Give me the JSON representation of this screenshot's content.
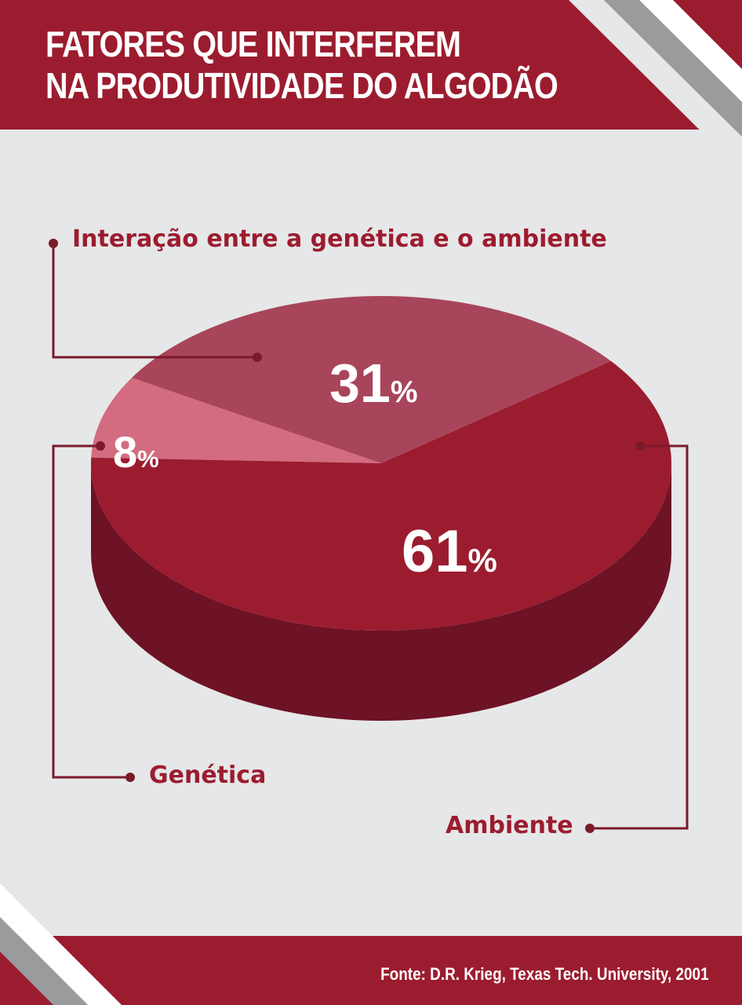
{
  "header": {
    "title_line1": "FATORES QUE INTERFEREM",
    "title_line2": "NA PRODUTIVIDADE DO ALGODÃO"
  },
  "footer": {
    "source": "Fonte: D.R. Krieg, Texas Tech. University, 2001"
  },
  "colors": {
    "brand": "#9c1c2f",
    "background": "#e6e7e8",
    "stripe_gray": "#9a9b9d",
    "side_dark": "#6e1226"
  },
  "chart_data": {
    "type": "pie",
    "style": "3d",
    "title": "FATORES QUE INTERFEREM NA PRODUTIVIDADE DO ALGODÃO",
    "slices": [
      {
        "name": "Ambiente",
        "value": 61,
        "label": "61%",
        "color": "#9c1c2f"
      },
      {
        "name": "Interação entre a genética e o ambiente",
        "value": 31,
        "label": "31%",
        "color": "#a8455b"
      },
      {
        "name": "Genética",
        "value": 8,
        "label": "8%",
        "color": "#d36c80"
      }
    ],
    "legend": "callouts",
    "source": "Fonte: D.R. Krieg, Texas Tech. University, 2001"
  }
}
